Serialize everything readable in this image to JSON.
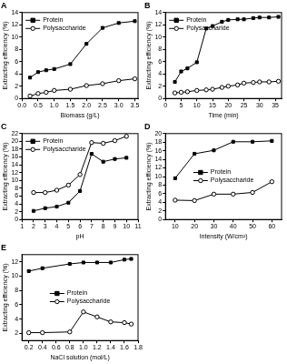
{
  "chart_data": [
    {
      "type": "line",
      "title": "A",
      "x_label": "Biomass (g/L)",
      "y_label": "Extracting efficiency (%)",
      "x": [
        0.25,
        0.5,
        0.75,
        1.0,
        1.5,
        2.0,
        2.5,
        3.0,
        3.5
      ],
      "series": [
        {
          "name": "Protein",
          "color": "#000000",
          "marker": "square",
          "line_style": "solid",
          "values": [
            3.4,
            4.3,
            4.6,
            4.8,
            5.6,
            8.9,
            11.5,
            12.3,
            12.6
          ]
        },
        {
          "name": "Polysaccharide",
          "color": "#000000",
          "marker": "circle",
          "line_style": "solid",
          "values": [
            0.4,
            0.8,
            1.0,
            1.3,
            1.5,
            2.1,
            2.4,
            2.9,
            3.2
          ]
        }
      ],
      "xlim": [
        0,
        3.6
      ],
      "xticks": [
        {
          "value": 0,
          "label": "0.0"
        },
        0.5,
        {
          "value": 1,
          "label": "1.0"
        },
        1.5,
        {
          "value": 2,
          "label": "2.0"
        },
        2.5,
        {
          "value": 3,
          "label": "3.0"
        },
        3.5
      ],
      "ylim": [
        0,
        14
      ],
      "yticks": [
        0,
        2,
        4,
        6,
        8,
        10,
        12,
        14
      ],
      "grid": false,
      "legend": "upper left"
    },
    {
      "type": "line",
      "title": "B",
      "x_label": "Time (min)",
      "y_label": "Extracting efficiency (%)",
      "x": [
        3,
        5,
        7,
        10,
        13,
        15,
        18,
        20,
        23,
        25,
        28,
        30,
        33,
        36
      ],
      "series": [
        {
          "name": "Protein",
          "color": "#000000",
          "marker": "square",
          "line_style": "solid",
          "values": [
            2.7,
            4.4,
            4.9,
            5.9,
            11.4,
            11.8,
            12.5,
            12.8,
            12.9,
            12.9,
            13.1,
            13.2,
            13.2,
            13.3
          ]
        },
        {
          "name": "Polysaccharide",
          "color": "#000000",
          "marker": "circle",
          "line_style": "solid",
          "values": [
            0.9,
            1.0,
            1.1,
            1.3,
            1.4,
            1.5,
            1.8,
            2.0,
            2.2,
            2.5,
            2.6,
            2.7,
            2.7,
            2.8
          ]
        }
      ],
      "xlim": [
        0,
        37
      ],
      "xticks": [
        0,
        5,
        10,
        15,
        20,
        25,
        30,
        35
      ],
      "ylim": [
        0,
        14
      ],
      "yticks": [
        0,
        2,
        4,
        6,
        8,
        10,
        12,
        14
      ],
      "grid": false,
      "legend": "upper left"
    },
    {
      "type": "line",
      "title": "C",
      "x_label": "pH",
      "y_label": "Extracting efficiency (%)",
      "x": [
        2,
        3,
        4,
        5,
        6,
        7,
        8,
        9,
        10
      ],
      "series": [
        {
          "name": "Protein",
          "color": "#000000",
          "marker": "square",
          "line_style": "solid",
          "values": [
            2.2,
            2.9,
            3.3,
            4.3,
            7.3,
            16.8,
            14.8,
            15.5,
            15.8
          ]
        },
        {
          "name": "Polysaccharide",
          "color": "#000000",
          "marker": "circle",
          "line_style": "solid",
          "values": [
            6.9,
            6.9,
            7.5,
            8.8,
            11.5,
            19.7,
            19.5,
            20.2,
            21.3
          ]
        }
      ],
      "xlim": [
        1,
        11
      ],
      "xticks": [
        1,
        2,
        3,
        4,
        5,
        6,
        7,
        8,
        9,
        10,
        11
      ],
      "ylim": [
        0,
        22
      ],
      "yticks": [
        0,
        2,
        4,
        6,
        8,
        10,
        12,
        14,
        16,
        18,
        20,
        22
      ],
      "grid": false,
      "legend": "upper left"
    },
    {
      "type": "line",
      "title": "D",
      "x_label": "Intensity (W/cm²)",
      "y_label": "Extracting efficiency (%)",
      "x": [
        10,
        20,
        30,
        40,
        50,
        60
      ],
      "series": [
        {
          "name": "Protein",
          "color": "#000000",
          "marker": "square",
          "line_style": "solid",
          "values": [
            9.6,
            15.3,
            16.1,
            18.1,
            18.1,
            18.3
          ]
        },
        {
          "name": "Polysaccharide",
          "color": "#000000",
          "marker": "circle",
          "line_style": "solid",
          "values": [
            4.5,
            4.4,
            5.9,
            5.9,
            6.3,
            8.8
          ]
        }
      ],
      "xlim": [
        5,
        65
      ],
      "xticks": [
        10,
        20,
        30,
        40,
        50,
        60
      ],
      "ylim": [
        0,
        20
      ],
      "yticks": [
        0,
        2,
        4,
        6,
        8,
        10,
        12,
        14,
        16,
        18,
        20
      ],
      "grid": false,
      "legend": "center"
    },
    {
      "type": "line",
      "title": "E",
      "x_label": "NaCl solution (mol/L)",
      "y_label": "Extracting efficiency (%)",
      "x": [
        0.2,
        0.4,
        0.8,
        1.0,
        1.2,
        1.4,
        1.6,
        1.7
      ],
      "series": [
        {
          "name": "Protein",
          "color": "#000000",
          "marker": "square",
          "line_style": "solid",
          "values": [
            10.7,
            11.1,
            11.7,
            11.9,
            11.9,
            11.9,
            12.3,
            12.4
          ]
        },
        {
          "name": "Polysaccharide",
          "color": "#000000",
          "marker": "circle",
          "line_style": "solid",
          "values": [
            2.1,
            2.1,
            2.2,
            5.0,
            4.3,
            3.6,
            3.5,
            3.3
          ]
        }
      ],
      "xlim": [
        0.1,
        1.8
      ],
      "xticks": [
        0.2,
        0.4,
        0.6,
        0.8,
        {
          "value": 1,
          "label": "1.0"
        },
        1.2,
        1.4,
        1.6,
        1.8
      ],
      "ylim": [
        1,
        13
      ],
      "yticks": [
        2,
        4,
        6,
        8,
        10,
        12
      ],
      "grid": false,
      "legend": "center"
    }
  ]
}
